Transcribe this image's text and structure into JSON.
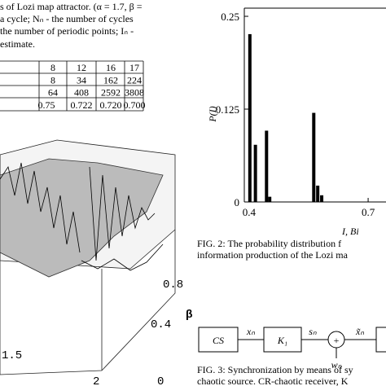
{
  "caption_top": {
    "lines": [
      "s of Lozi map attractor. (α = 1.7, β =",
      "a cycle; Nₙ - the number of cycles",
      "the number of periodic points; Iₙ -",
      "estimate."
    ]
  },
  "table": {
    "rows": [
      [
        "8",
        "12",
        "16",
        "17"
      ],
      [
        "8",
        "34",
        "162",
        "224"
      ],
      [
        "64",
        "408",
        "2592",
        "3808"
      ],
      [
        "0.75",
        "0.722",
        "0.720",
        "0.700"
      ]
    ]
  },
  "surface": {
    "labels": [
      "0.8",
      "0.4",
      "β",
      "1.5",
      "2",
      "0"
    ]
  },
  "figure2": {
    "type": "bar",
    "ylabel": "P(I)",
    "xlabel": "I, Bi",
    "x": [
      0.402,
      0.416,
      0.444,
      0.452,
      0.563,
      0.573,
      0.583
    ],
    "values": [
      0.226,
      0.077,
      0.096,
      0.007,
      0.12,
      0.022,
      0.009
    ],
    "color": "#000000",
    "xlim": [
      0.388,
      0.745
    ],
    "ylim": [
      0,
      0.261
    ],
    "xticks": [
      0.4,
      0.7
    ],
    "yticks": [
      0,
      0.125,
      0.25
    ],
    "caption": [
      "FIG. 2: The probability distribution f",
      "information production of the Lozi ma"
    ]
  },
  "figure3": {
    "blocks": [
      "CS",
      "K₁"
    ],
    "signals": [
      "xₙ",
      "sₙ",
      "wₙ",
      "x̃ₙ"
    ],
    "sum": "+",
    "caption": [
      "FIG. 3: Synchronization by means of sy",
      "chaotic source. CR-chaotic receiver, K"
    ]
  }
}
